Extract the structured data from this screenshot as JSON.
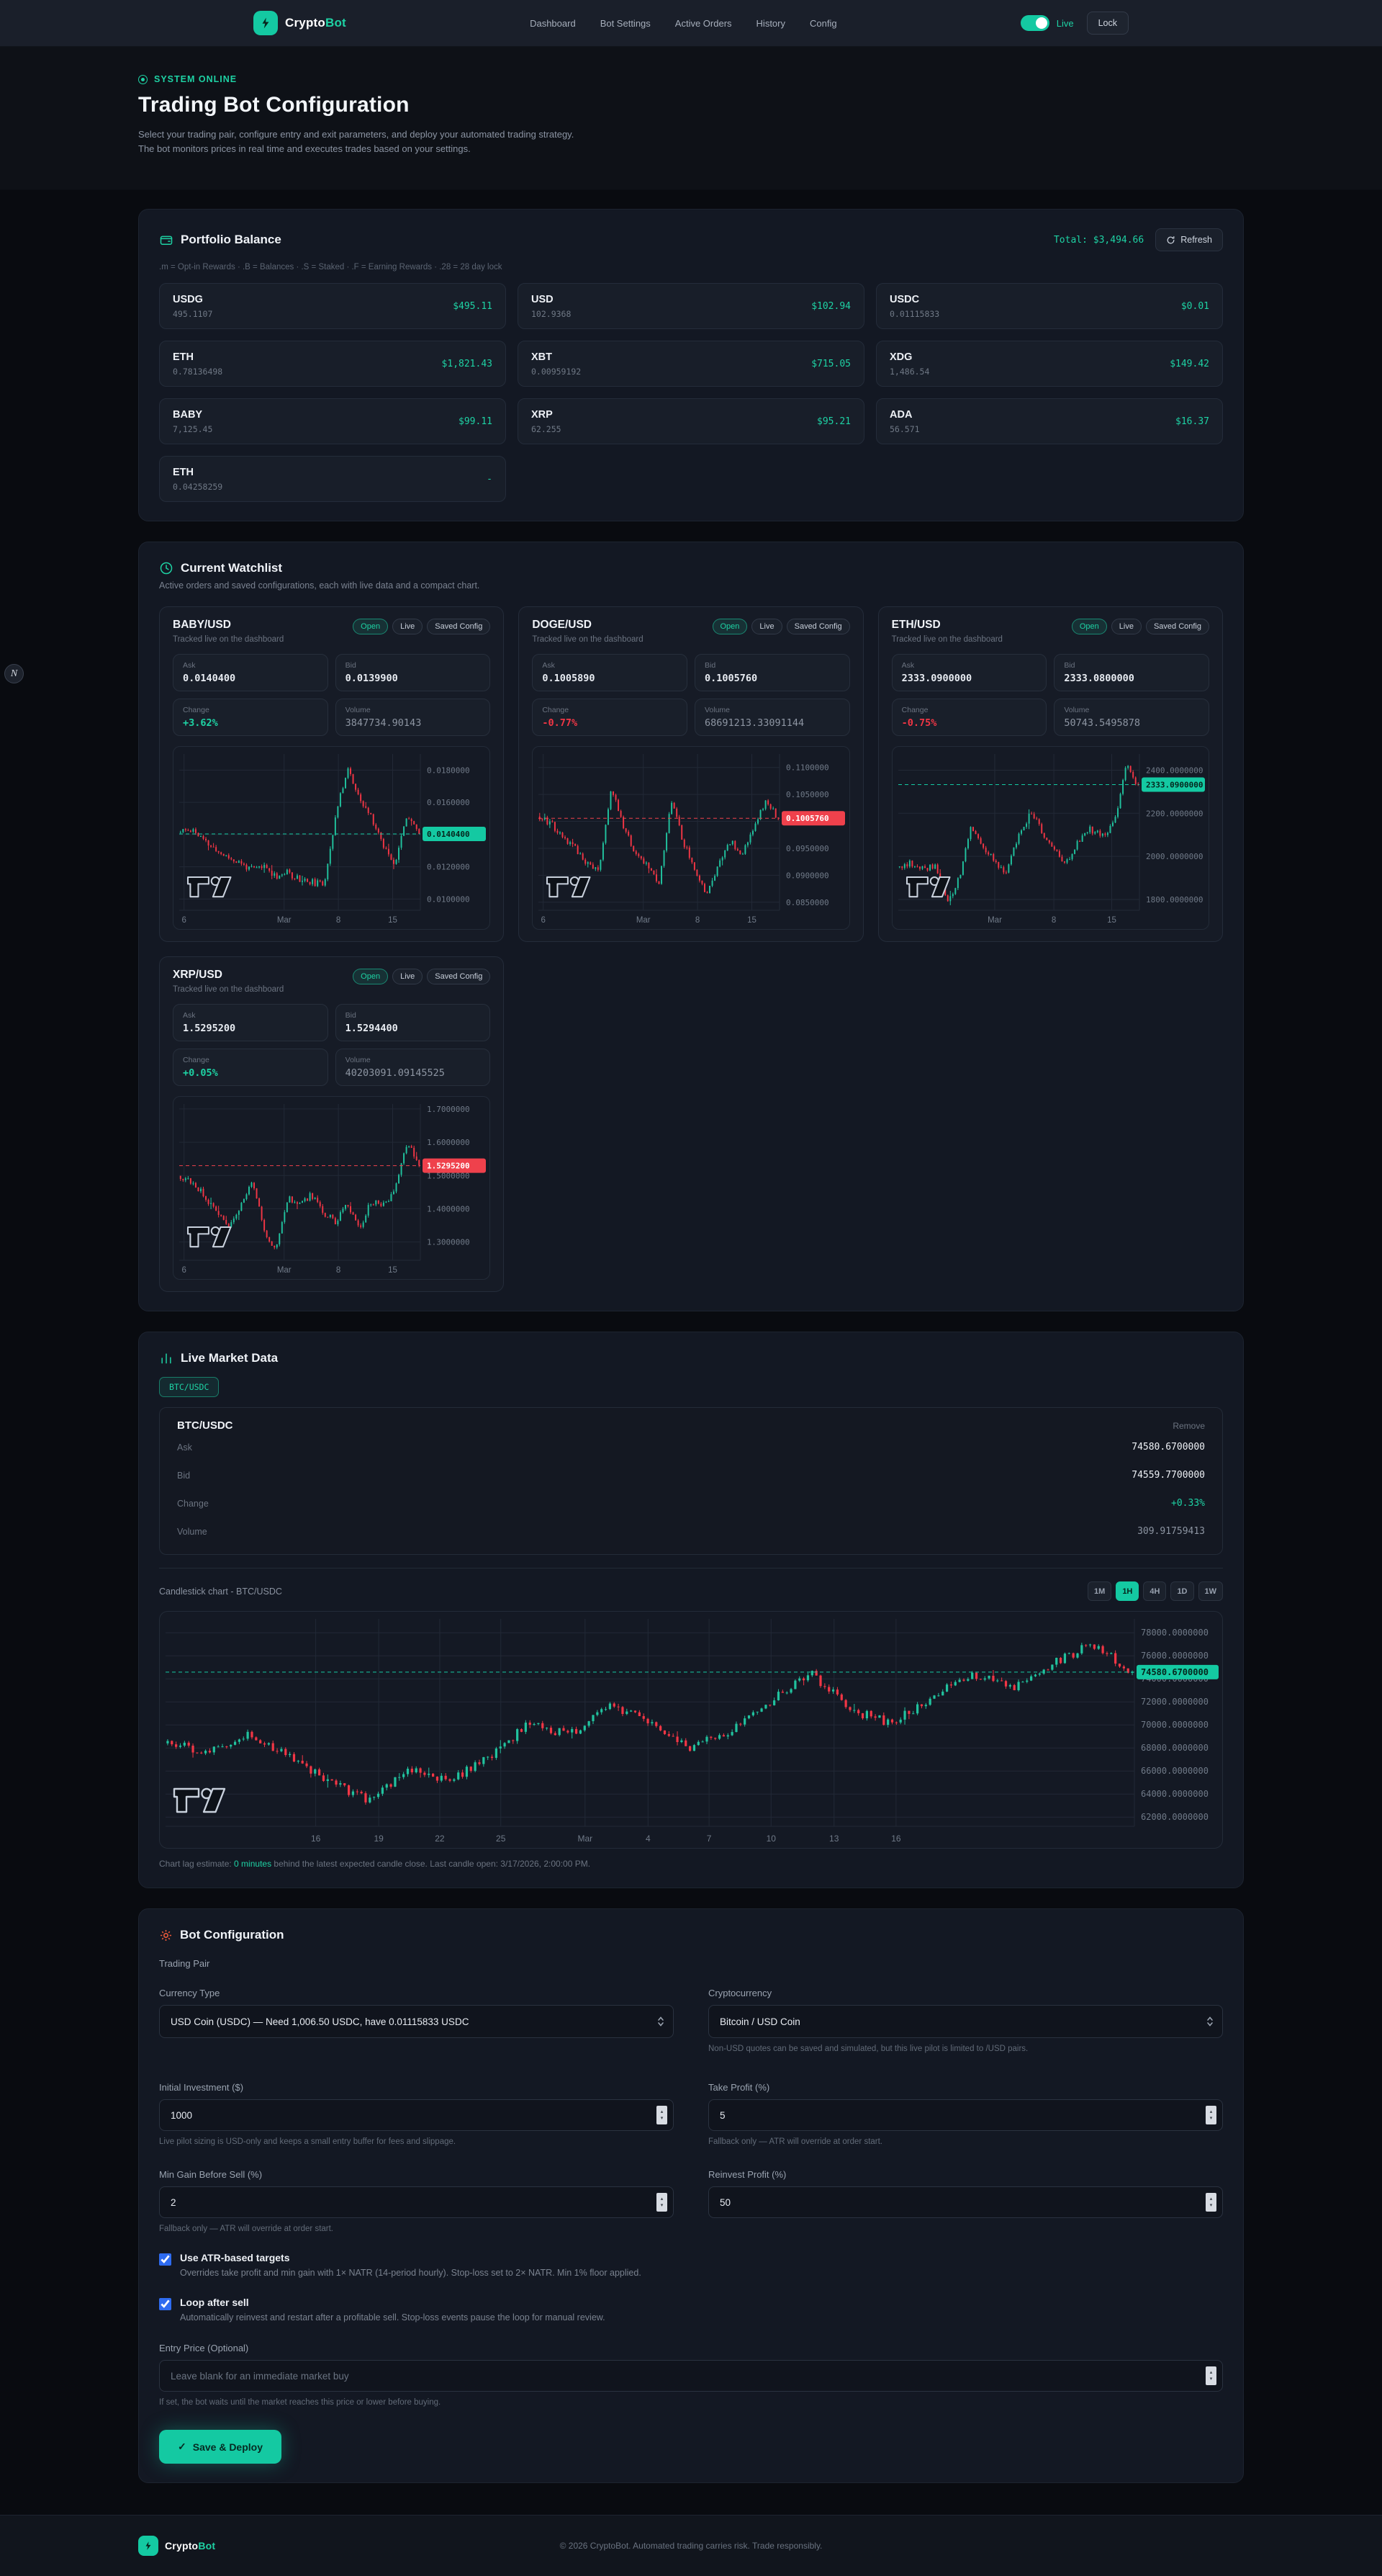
{
  "header": {
    "brand_primary": "Crypto",
    "brand_accent": "Bot",
    "nav": [
      "Dashboard",
      "Bot Settings",
      "Active Orders",
      "History",
      "Config"
    ],
    "live_label": "Live",
    "lock_label": "Lock"
  },
  "hero": {
    "status": "SYSTEM ONLINE",
    "title": "Trading Bot Configuration",
    "description": "Select your trading pair, configure entry and exit parameters, and deploy your automated trading strategy. The bot monitors prices in real time and executes trades based on your settings."
  },
  "portfolio": {
    "title": "Portfolio Balance",
    "total_label": "Total: $3,494.66",
    "refresh_label": "Refresh",
    "legend": ".m = Opt-in Rewards · .B = Balances · .S = Staked · .F = Earning Rewards · .28 = 28 day lock",
    "assets": [
      {
        "symbol": "USDG",
        "amount": "495.1107",
        "value": "$495.11"
      },
      {
        "symbol": "USD",
        "amount": "102.9368",
        "value": "$102.94"
      },
      {
        "symbol": "USDC",
        "amount": "0.01115833",
        "value": "$0.01"
      },
      {
        "symbol": "ETH",
        "amount": "0.78136498",
        "value": "$1,821.43"
      },
      {
        "symbol": "XBT",
        "amount": "0.00959192",
        "value": "$715.05"
      },
      {
        "symbol": "XDG",
        "amount": "1,486.54",
        "value": "$149.42"
      },
      {
        "symbol": "BABY",
        "amount": "7,125.45",
        "value": "$99.11"
      },
      {
        "symbol": "XRP",
        "amount": "62.255",
        "value": "$95.21"
      },
      {
        "symbol": "ADA",
        "amount": "56.571",
        "value": "$16.37"
      },
      {
        "symbol": "ETH",
        "amount": "0.04258259",
        "value": "-"
      }
    ]
  },
  "watchlist": {
    "title": "Current Watchlist",
    "subtitle": "Active orders and saved configurations, each with live data and a compact chart.",
    "tracked_note": "Tracked live on the dashboard",
    "badges": [
      "Open",
      "Live",
      "Saved Config"
    ],
    "stat_labels": [
      "Ask",
      "Bid",
      "Change",
      "Volume"
    ],
    "pairs": [
      {
        "name": "BABY/USD",
        "ask": "0.0140400",
        "bid": "0.0139900",
        "change": "+3.62%",
        "change_dir": "up",
        "volume": "3847734.90143",
        "chart_id": "baby"
      },
      {
        "name": "DOGE/USD",
        "ask": "0.1005890",
        "bid": "0.1005760",
        "change": "-0.77%",
        "change_dir": "down",
        "volume": "68691213.33091144",
        "chart_id": "doge"
      },
      {
        "name": "ETH/USD",
        "ask": "2333.0900000",
        "bid": "2333.0800000",
        "change": "-0.75%",
        "change_dir": "down",
        "volume": "50743.5495878",
        "chart_id": "eth"
      },
      {
        "name": "XRP/USD",
        "ask": "1.5295200",
        "bid": "1.5294400",
        "change": "+0.05%",
        "change_dir": "up",
        "volume": "40203091.09145525",
        "chart_id": "xrp"
      }
    ]
  },
  "market": {
    "title": "Live Market Data",
    "chip": "BTC/USDC",
    "card": {
      "pair": "BTC/USDC",
      "remove_label": "Remove",
      "rows": [
        {
          "label": "Ask",
          "value": "74580.6700000",
          "tone": "normal"
        },
        {
          "label": "Bid",
          "value": "74559.7700000",
          "tone": "normal"
        },
        {
          "label": "Change",
          "value": "+0.33%",
          "tone": "up"
        },
        {
          "label": "Volume",
          "value": "309.91759413",
          "tone": "dim"
        }
      ]
    },
    "chart_title": "Candlestick chart - BTC/USDC",
    "timeframes": [
      "1M",
      "1H",
      "4H",
      "1D",
      "1W"
    ],
    "active_timeframe": "1H",
    "lag_prefix": "Chart lag estimate: ",
    "lag_highlight": "0 minutes",
    "lag_suffix": " behind the latest expected candle close. Last candle open: 3/17/2026, 2:00:00 PM."
  },
  "config": {
    "title": "Bot Configuration",
    "group_label": "Trading Pair",
    "currency_type": {
      "label": "Currency Type",
      "value": "USD Coin (USDC) — Need 1,006.50 USDC, have 0.01115833 USDC"
    },
    "cryptocurrency": {
      "label": "Cryptocurrency",
      "value": "Bitcoin / USD Coin",
      "helper": "Non-USD quotes can be saved and simulated, but this live pilot is limited to /USD pairs."
    },
    "initial_investment": {
      "label": "Initial Investment ($)",
      "value": "1000",
      "helper": "Live pilot sizing is USD-only and keeps a small entry buffer for fees and slippage."
    },
    "take_profit": {
      "label": "Take Profit (%)",
      "value": "5",
      "helper": "Fallback only — ATR will override at order start."
    },
    "min_gain": {
      "label": "Min Gain Before Sell (%)",
      "value": "2",
      "helper": "Fallback only — ATR will override at order start."
    },
    "reinvest": {
      "label": "Reinvest Profit (%)",
      "value": "50"
    },
    "checkboxes": [
      {
        "title": "Use ATR-based targets",
        "desc": "Overrides take profit and min gain with 1× NATR (14-period hourly). Stop-loss set to 2× NATR. Min 1% floor applied.",
        "checked": true
      },
      {
        "title": "Loop after sell",
        "desc": "Automatically reinvest and restart after a profitable sell. Stop-loss events pause the loop for manual review.",
        "checked": true
      }
    ],
    "entry_price": {
      "label": "Entry Price (Optional)",
      "placeholder": "Leave blank for an immediate market buy",
      "helper": "If set, the bot waits until the market reaches this price or lower before buying."
    },
    "submit_label": "Save & Deploy"
  },
  "footer": {
    "copyright": "© 2026 CryptoBot. Automated trading carries risk. Trade responsibly."
  },
  "float_badge": "N",
  "chart_data": [
    {
      "id": "baby",
      "type": "candlestick",
      "pair": "BABY/USD",
      "timeframe": "4H",
      "ymin": 0.0093,
      "ymax": 0.019,
      "candles": 95,
      "seed": 11,
      "gutter": 96,
      "y_ticks": [
        {
          "label": "0.0180000",
          "value": 0.018
        },
        {
          "label": "0.0160000",
          "value": 0.016
        },
        {
          "label": "0.0140000",
          "value": 0.014
        },
        {
          "label": "0.0120000",
          "value": 0.012
        },
        {
          "label": "0.0100000",
          "value": 0.01
        }
      ],
      "x_ticks": [
        {
          "label": "6",
          "t": 0.02
        },
        {
          "label": "Mar",
          "t": 0.435
        },
        {
          "label": "8",
          "t": 0.66
        },
        {
          "label": "15",
          "t": 0.885
        }
      ],
      "price_tag": {
        "label": "0.0140400",
        "value": 0.01404,
        "dir": "up"
      },
      "profile": [
        0.5,
        0.52,
        0.44,
        0.38,
        0.34,
        0.3,
        0.26,
        0.28,
        0.22,
        0.24,
        0.2,
        0.18,
        0.16,
        0.6,
        0.92,
        0.7,
        0.6,
        0.42,
        0.3,
        0.62,
        0.5
      ]
    },
    {
      "id": "doge",
      "type": "candlestick",
      "pair": "DOGE/USD",
      "timeframe": "4H",
      "ymin": 0.0835,
      "ymax": 0.1125,
      "candles": 95,
      "seed": 23,
      "gutter": 96,
      "y_ticks": [
        {
          "label": "0.1100000",
          "value": 0.11
        },
        {
          "label": "0.1050000",
          "value": 0.105
        },
        {
          "label": "0.1000000",
          "value": 0.1
        },
        {
          "label": "0.0950000",
          "value": 0.095
        },
        {
          "label": "0.0900000",
          "value": 0.09
        },
        {
          "label": "0.0850000",
          "value": 0.085
        }
      ],
      "x_ticks": [
        {
          "label": "6",
          "t": 0.02
        },
        {
          "label": "Mar",
          "t": 0.435
        },
        {
          "label": "8",
          "t": 0.66
        },
        {
          "label": "15",
          "t": 0.885
        }
      ],
      "price_tag": {
        "label": "0.1005760",
        "value": 0.100576,
        "dir": "down"
      },
      "profile": [
        0.6,
        0.55,
        0.45,
        0.4,
        0.3,
        0.25,
        0.8,
        0.55,
        0.35,
        0.3,
        0.15,
        0.7,
        0.45,
        0.25,
        0.1,
        0.3,
        0.45,
        0.35,
        0.55,
        0.7,
        0.59
      ]
    },
    {
      "id": "eth",
      "type": "candlestick",
      "pair": "ETH/USD",
      "timeframe": "4H",
      "ymin": 1750,
      "ymax": 2475,
      "candles": 95,
      "seed": 37,
      "gutter": 96,
      "y_ticks": [
        {
          "label": "2400.0000000",
          "value": 2400
        },
        {
          "label": "2200.0000000",
          "value": 2200
        },
        {
          "label": "2000.0000000",
          "value": 2000
        },
        {
          "label": "1800.0000000",
          "value": 1800
        }
      ],
      "x_ticks": [
        {
          "label": "Mar",
          "t": 0.4
        },
        {
          "label": "8",
          "t": 0.645
        },
        {
          "label": "15",
          "t": 0.885
        }
      ],
      "price_tag": {
        "label": "2333.0900000",
        "value": 2333.09,
        "dir": "up"
      },
      "profile": [
        0.28,
        0.3,
        0.26,
        0.28,
        0.06,
        0.2,
        0.55,
        0.42,
        0.3,
        0.25,
        0.48,
        0.62,
        0.5,
        0.38,
        0.3,
        0.45,
        0.52,
        0.48,
        0.55,
        0.92,
        0.8
      ]
    },
    {
      "id": "xrp",
      "type": "candlestick",
      "pair": "XRP/USD",
      "timeframe": "4H",
      "ymin": 1.245,
      "ymax": 1.715,
      "candles": 95,
      "seed": 53,
      "gutter": 96,
      "y_ticks": [
        {
          "label": "1.7000000",
          "value": 1.7
        },
        {
          "label": "1.6000000",
          "value": 1.6
        },
        {
          "label": "1.5000000",
          "value": 1.5
        },
        {
          "label": "1.4000000",
          "value": 1.4
        },
        {
          "label": "1.3000000",
          "value": 1.3
        }
      ],
      "x_ticks": [
        {
          "label": "6",
          "t": 0.02
        },
        {
          "label": "Mar",
          "t": 0.435
        },
        {
          "label": "8",
          "t": 0.66
        },
        {
          "label": "15",
          "t": 0.885
        }
      ],
      "price_tag": {
        "label": "1.5295200",
        "value": 1.52952,
        "dir": "down"
      },
      "profile": [
        0.54,
        0.5,
        0.42,
        0.3,
        0.22,
        0.35,
        0.52,
        0.2,
        0.05,
        0.4,
        0.35,
        0.42,
        0.3,
        0.25,
        0.35,
        0.2,
        0.38,
        0.35,
        0.45,
        0.75,
        0.61
      ]
    },
    {
      "id": "btc",
      "type": "candlestick",
      "pair": "BTC/USDC",
      "timeframe": "1H",
      "ymin": 61200,
      "ymax": 79200,
      "candles": 230,
      "seed": 71,
      "gutter": 122,
      "y_ticks": [
        {
          "label": "78000.0000000",
          "value": 78000
        },
        {
          "label": "76000.0000000",
          "value": 76000
        },
        {
          "label": "74000.0000000",
          "value": 74000
        },
        {
          "label": "72000.0000000",
          "value": 72000
        },
        {
          "label": "70000.0000000",
          "value": 70000
        },
        {
          "label": "68000.0000000",
          "value": 68000
        },
        {
          "label": "66000.0000000",
          "value": 66000
        },
        {
          "label": "64000.0000000",
          "value": 64000
        },
        {
          "label": "62000.0000000",
          "value": 62000
        }
      ],
      "x_ticks": [
        {
          "label": "16",
          "t": 0.155
        },
        {
          "label": "19",
          "t": 0.22
        },
        {
          "label": "22",
          "t": 0.283
        },
        {
          "label": "25",
          "t": 0.346
        },
        {
          "label": "Mar",
          "t": 0.433
        },
        {
          "label": "4",
          "t": 0.498
        },
        {
          "label": "7",
          "t": 0.561
        },
        {
          "label": "10",
          "t": 0.625
        },
        {
          "label": "13",
          "t": 0.69
        },
        {
          "label": "16",
          "t": 0.754
        }
      ],
      "price_tag": {
        "label": "74580.6700000",
        "value": 74580.67,
        "dir": "up"
      },
      "profile": [
        0.4,
        0.36,
        0.44,
        0.34,
        0.22,
        0.12,
        0.28,
        0.22,
        0.33,
        0.5,
        0.44,
        0.58,
        0.5,
        0.38,
        0.46,
        0.6,
        0.74,
        0.56,
        0.5,
        0.62,
        0.74,
        0.66,
        0.78,
        0.88,
        0.745
      ]
    }
  ]
}
